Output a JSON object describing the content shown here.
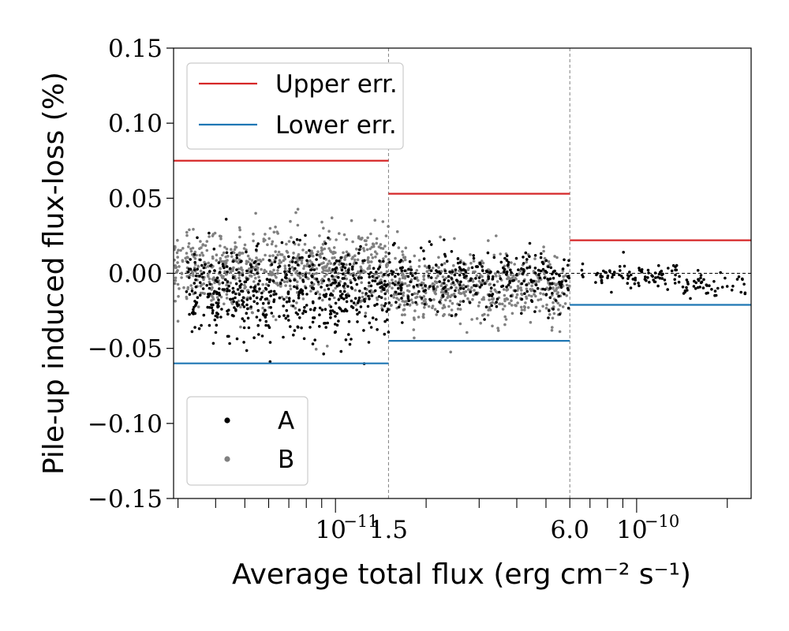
{
  "chart_data": {
    "type": "scatter",
    "title": "",
    "xlabel": "Average total flux (erg cm⁻² s⁻¹)",
    "ylabel": "Pile-up induced flux-loss (%)",
    "xscale": "log",
    "xlim": [
      2.9e-12,
      2.4e-10
    ],
    "ylim": [
      -0.15,
      0.15
    ],
    "yticks": [
      {
        "value": 0.15,
        "label": "0.15"
      },
      {
        "value": 0.1,
        "label": "0.10"
      },
      {
        "value": 0.05,
        "label": "0.05"
      },
      {
        "value": 0.0,
        "label": "0.00"
      },
      {
        "value": -0.05,
        "label": "−0.05"
      },
      {
        "value": -0.1,
        "label": "−0.10"
      },
      {
        "value": -0.15,
        "label": "−0.15"
      }
    ],
    "xticks": [
      {
        "value": 1e-11,
        "base": "10",
        "exp": "−11"
      },
      {
        "value": 1e-10,
        "base": "10",
        "exp": "−10"
      }
    ],
    "boundaries": [
      {
        "value": 1.5e-11,
        "label": "1.5"
      },
      {
        "value": 6e-11,
        "label": "6.0"
      }
    ],
    "error_bins": [
      {
        "range": [
          2.9e-12,
          1.5e-11
        ],
        "upper": 0.075,
        "lower": -0.06
      },
      {
        "range": [
          1.5e-11,
          6e-11
        ],
        "upper": 0.053,
        "lower": -0.045
      },
      {
        "range": [
          6e-11,
          2.4e-10
        ],
        "upper": 0.022,
        "lower": -0.021
      }
    ],
    "error_legend": [
      {
        "name": "Upper err.",
        "color": "#d62728"
      },
      {
        "name": "Lower err.",
        "color": "#1f77b4"
      }
    ],
    "series": [
      {
        "name": "A",
        "color": "#000000",
        "clusters": [
          {
            "x_range": [
              3.2e-12,
              1.5e-11
            ],
            "n": 560,
            "mean": -0.012,
            "sd": 0.015
          },
          {
            "x_range": [
              1.5e-11,
              6e-11
            ],
            "n": 300,
            "mean": -0.004,
            "sd": 0.01
          },
          {
            "x_range": [
              6.5e-11,
              1.4e-10
            ],
            "n": 90,
            "mean": -0.001,
            "sd": 0.004
          },
          {
            "x_range": [
              1.4e-10,
              2.4e-10
            ],
            "n": 50,
            "mean": -0.009,
            "sd": 0.004
          }
        ]
      },
      {
        "name": "B",
        "color": "#808080",
        "clusters": [
          {
            "x_range": [
              2.9e-12,
              1.5e-11
            ],
            "n": 720,
            "mean": 0.004,
            "sd": 0.013
          },
          {
            "x_range": [
              1.5e-11,
              6e-11
            ],
            "n": 520,
            "mean": -0.01,
            "sd": 0.011
          }
        ]
      }
    ],
    "legend_position": [
      "upper-left",
      "lower-left"
    ]
  }
}
